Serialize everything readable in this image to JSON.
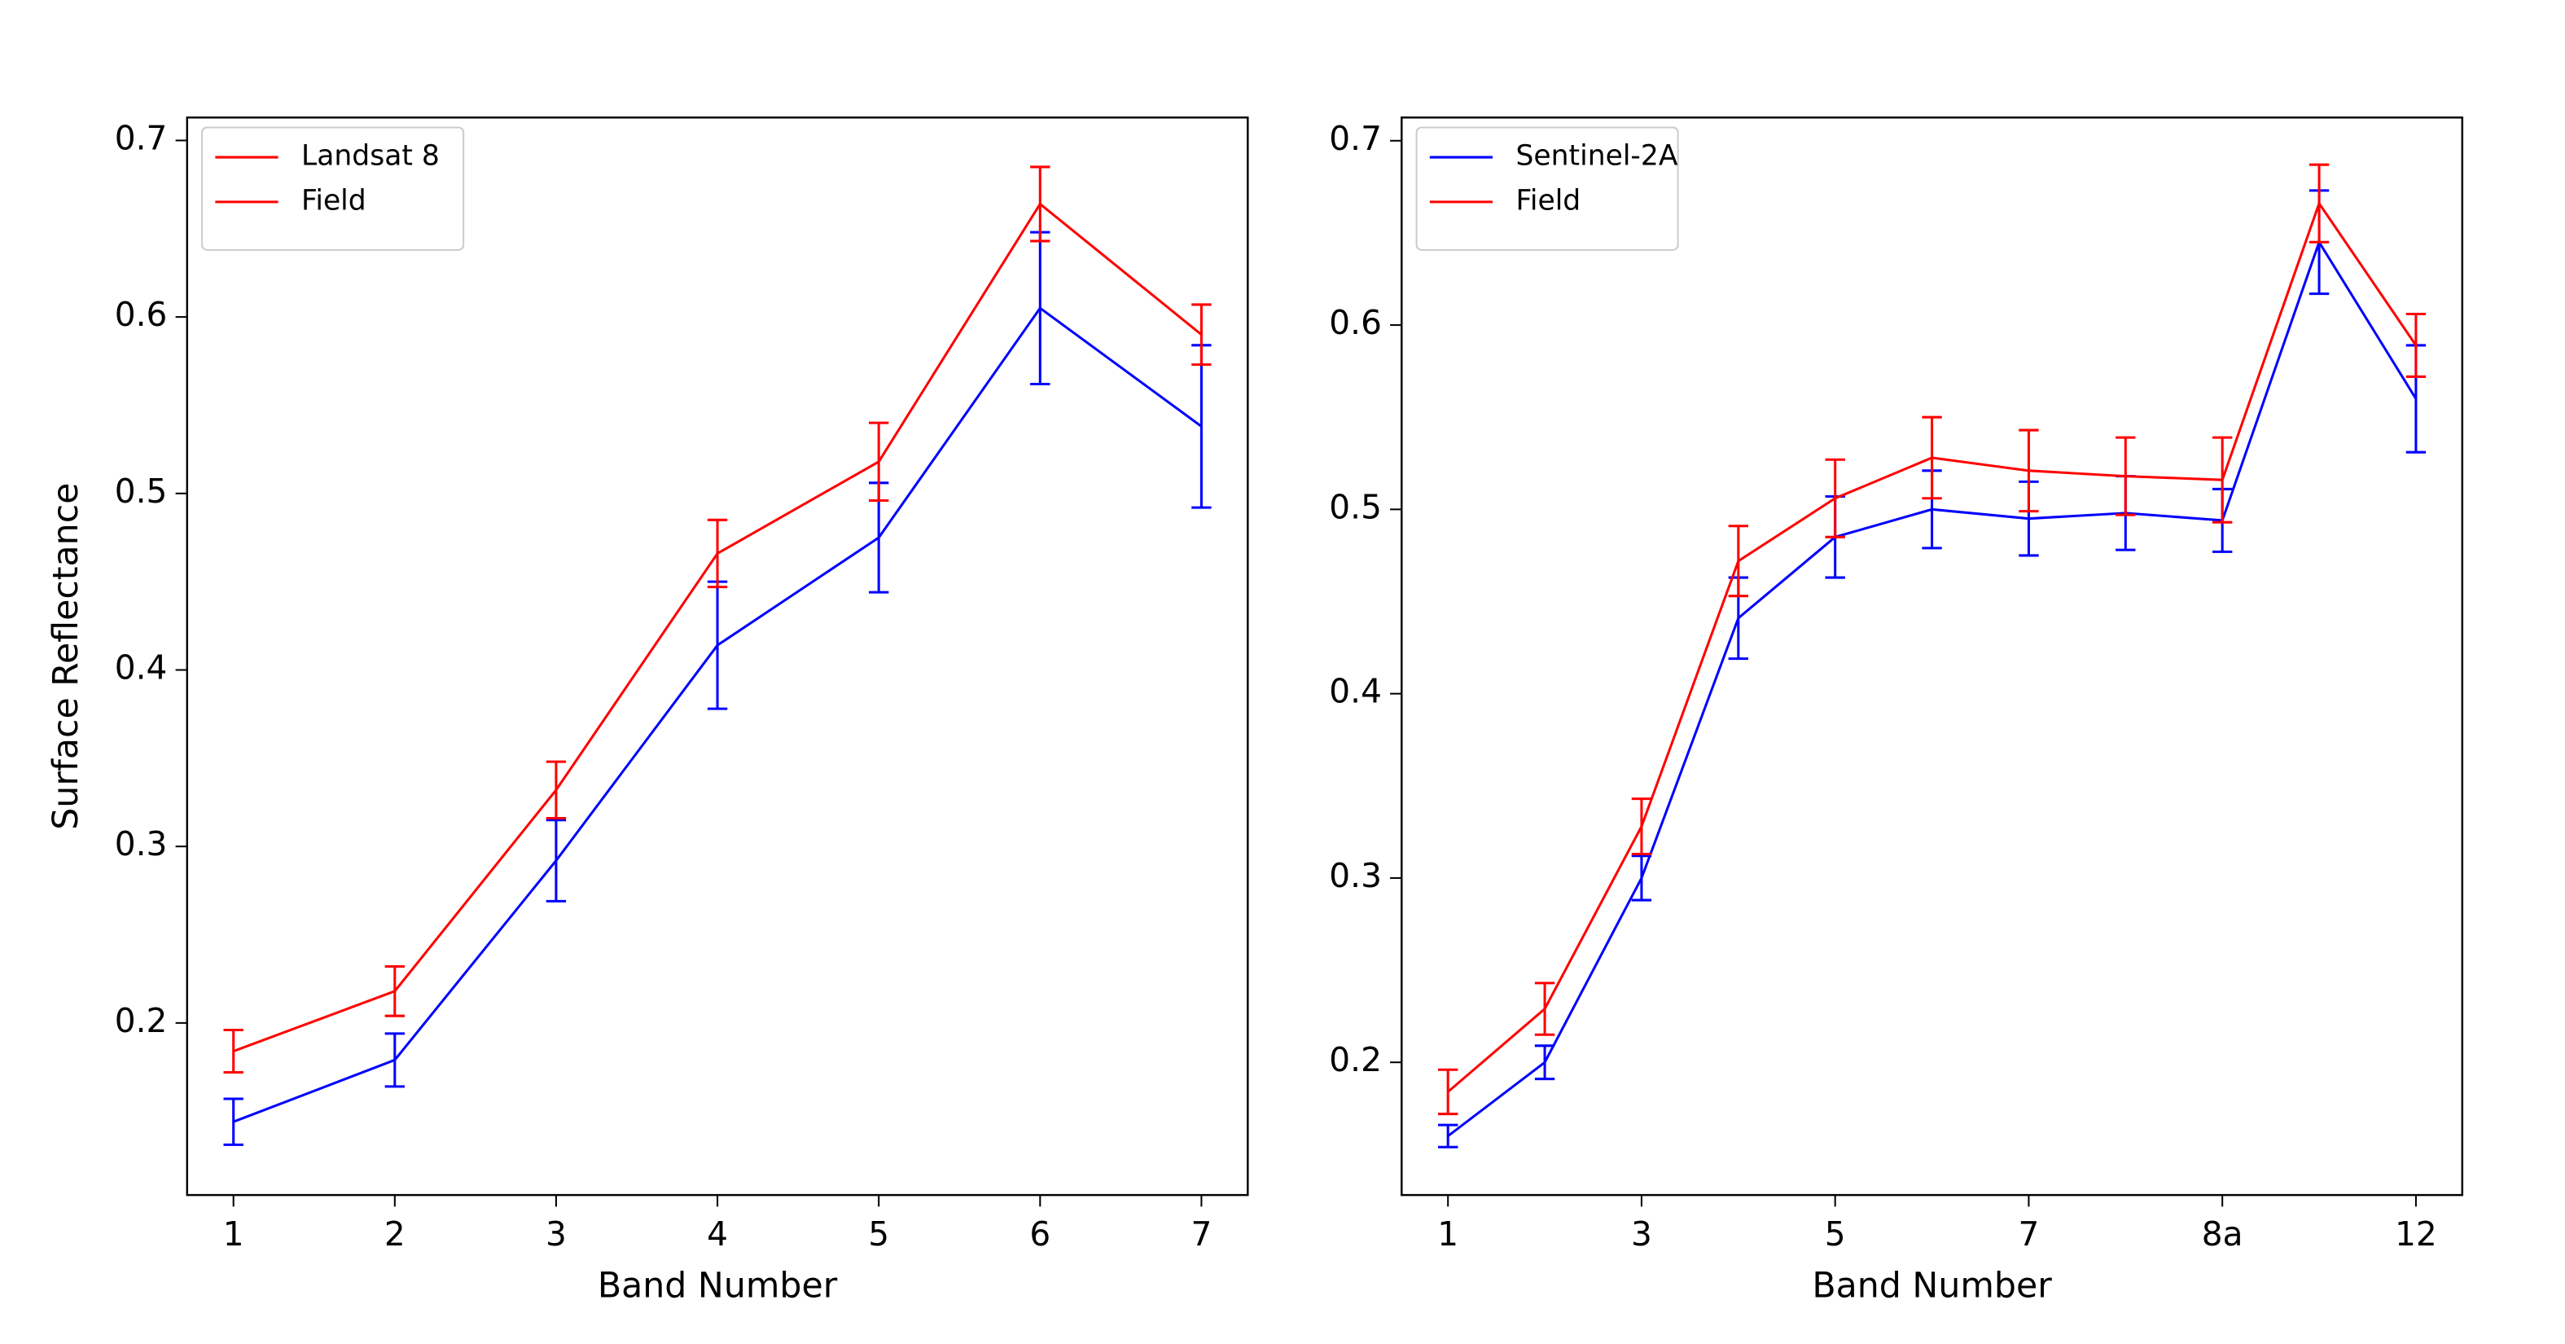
{
  "chart_data": [
    {
      "type": "line",
      "x_label": "Band Number",
      "y_label": "Surface Reflectance",
      "categories": [
        "1",
        "2",
        "3",
        "4",
        "5",
        "6",
        "7"
      ],
      "series": [
        {
          "name": "Landsat 8",
          "color": "#0000ff",
          "legend_color": "#ff0000",
          "values": [
            0.144,
            0.179,
            0.292,
            0.414,
            0.475,
            0.605,
            0.538
          ],
          "errors": [
            0.013,
            0.015,
            0.023,
            0.036,
            0.031,
            0.043,
            0.046
          ]
        },
        {
          "name": "Field",
          "color": "#ff0000",
          "legend_color": "#ff0000",
          "values": [
            0.184,
            0.218,
            0.332,
            0.466,
            0.518,
            0.664,
            0.59
          ],
          "errors": [
            0.012,
            0.014,
            0.016,
            0.019,
            0.022,
            0.021,
            0.017
          ]
        }
      ],
      "ylim": [
        0.1025,
        0.713
      ],
      "yticks": [
        0.2,
        0.3,
        0.4,
        0.5,
        0.6,
        0.7
      ],
      "legend": "upper left"
    },
    {
      "type": "line",
      "x_label": "Band Number",
      "categories": [
        "1",
        null,
        "3",
        null,
        "5",
        null,
        "7",
        null,
        "8a",
        null,
        "12"
      ],
      "series": [
        {
          "name": "Sentinel-2A",
          "color": "#0000ff",
          "legend_color": "#0000ff",
          "values": [
            0.16,
            0.2,
            0.3,
            0.441,
            0.485,
            0.5,
            0.495,
            0.498,
            0.494,
            0.645,
            0.56
          ],
          "errors": [
            0.006,
            0.009,
            0.012,
            0.022,
            0.022,
            0.021,
            0.02,
            0.02,
            0.017,
            0.028,
            0.029
          ]
        },
        {
          "name": "Field",
          "color": "#ff0000",
          "legend_color": "#ff0000",
          "values": [
            0.184,
            0.229,
            0.328,
            0.472,
            0.506,
            0.528,
            0.521,
            0.518,
            0.516,
            0.666,
            0.589
          ],
          "errors": [
            0.012,
            0.014,
            0.015,
            0.019,
            0.021,
            0.022,
            0.022,
            0.021,
            0.023,
            0.021,
            0.017
          ]
        }
      ],
      "ylim": [
        0.128,
        0.7126
      ],
      "yticks": [
        0.2,
        0.3,
        0.4,
        0.5,
        0.6,
        0.7
      ],
      "legend": "upper left"
    }
  ]
}
